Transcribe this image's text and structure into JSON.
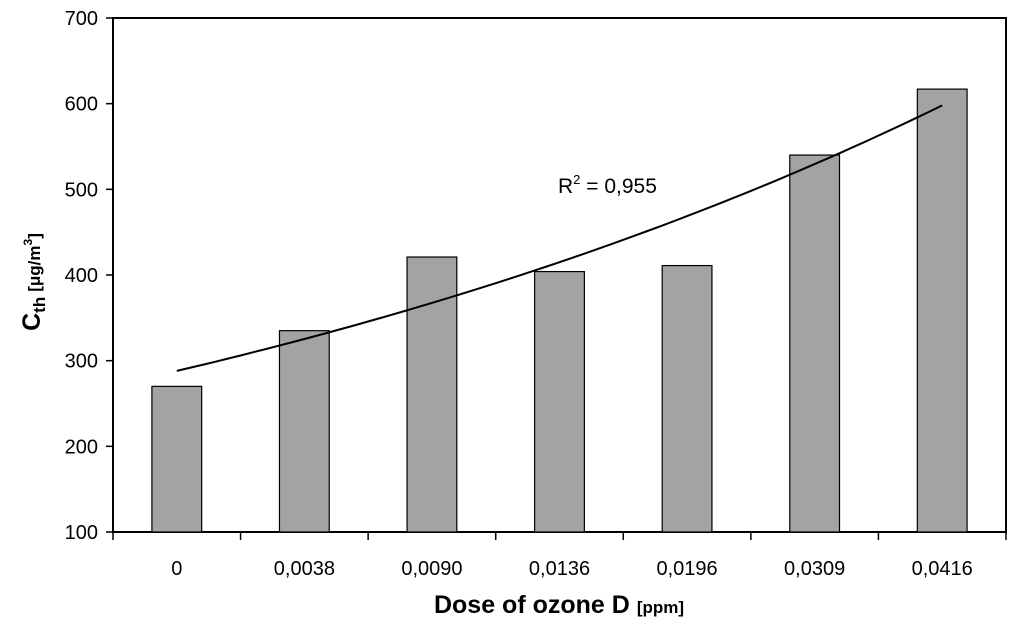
{
  "chart_data": {
    "type": "bar",
    "categories": [
      "0",
      "0,0038",
      "0,0090",
      "0,0136",
      "0,0196",
      "0,0309",
      "0,0416"
    ],
    "values": [
      270,
      335,
      421,
      404,
      411,
      540,
      617
    ],
    "ylim": [
      100,
      700
    ],
    "yticks": [
      "100",
      "200",
      "300",
      "400",
      "500",
      "600",
      "700"
    ],
    "xlabel": {
      "main": "Dose of ozone D",
      "unit": "[ppm]"
    },
    "ylabel": {
      "main": "C",
      "sub": "th",
      "unit": "[μg/m",
      "unit_sup": "3",
      "unit_end": "]"
    },
    "trendline": {
      "type": "exponential",
      "start_value": 288,
      "end_value": 598
    },
    "annotation": {
      "base": "R",
      "sup": "2",
      "rest": " = 0,955"
    },
    "grid": false,
    "legend": "none",
    "colors": {
      "bar_fill": "#a3a3a3",
      "bar_stroke": "#000000",
      "axis": "#000000",
      "trendline": "#000000"
    }
  }
}
